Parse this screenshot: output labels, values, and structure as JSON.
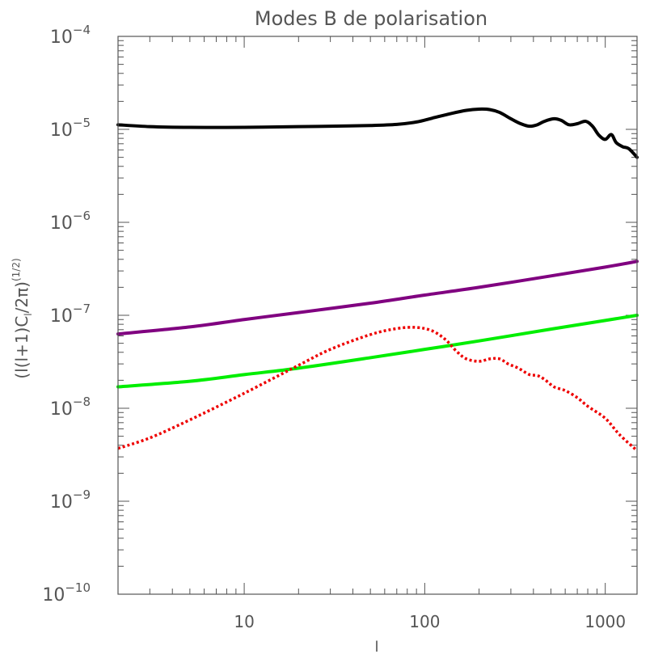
{
  "chart_data": {
    "type": "line",
    "title": "Modes B de polarisation",
    "xlabel": "l",
    "ylabel_base": "(l(l+1)C",
    "ylabel_sub": "l",
    "ylabel_tail": "/2π)",
    "ylabel_sup": "(1/2)",
    "x_scale": "log",
    "y_scale": "log",
    "xlim": [
      2,
      1500
    ],
    "ylim": [
      1e-10,
      0.0001
    ],
    "x_tick_labels": [
      "10",
      "100",
      "1000"
    ],
    "x_tick_values": [
      10,
      100,
      1000
    ],
    "y_tick_bases": [
      "10",
      "10",
      "10",
      "10",
      "10",
      "10",
      "10"
    ],
    "y_tick_exponents": [
      "−10",
      "−9",
      "−8",
      "−7",
      "−6",
      "−5",
      "−4"
    ],
    "y_tick_values": [
      1e-10,
      1e-09,
      1e-08,
      1e-07,
      1e-06,
      1e-05,
      0.0001
    ],
    "grid": false,
    "series": [
      {
        "color": "#000000",
        "style": "solid",
        "x": [
          2,
          3,
          5,
          10,
          20,
          30,
          50,
          70,
          90,
          110,
          140,
          170,
          200,
          230,
          260,
          300,
          340,
          380,
          420,
          460,
          520,
          570,
          630,
          700,
          780,
          850,
          920,
          1000,
          1080,
          1150,
          1250,
          1350,
          1500
        ],
        "y": [
          1.12e-05,
          1.07e-05,
          1.05e-05,
          1.05e-05,
          1.07e-05,
          1.08e-05,
          1.1e-05,
          1.13e-05,
          1.2e-05,
          1.32e-05,
          1.48e-05,
          1.6e-05,
          1.65e-05,
          1.63e-05,
          1.52e-05,
          1.3e-05,
          1.15e-05,
          1.08e-05,
          1.12e-05,
          1.22e-05,
          1.3e-05,
          1.25e-05,
          1.12e-05,
          1.15e-05,
          1.22e-05,
          1.08e-05,
          8.7e-06,
          7.8e-06,
          8.8e-06,
          7.2e-06,
          6.5e-06,
          6.2e-06,
          5e-06
        ]
      },
      {
        "color": "#800080",
        "style": "solid",
        "x": [
          2,
          5,
          10,
          20,
          50,
          100,
          200,
          500,
          1000,
          1500
        ],
        "y": [
          6.3e-08,
          7.5e-08,
          9e-08,
          1.07e-07,
          1.35e-07,
          1.65e-07,
          2e-07,
          2.65e-07,
          3.3e-07,
          3.8e-07
        ]
      },
      {
        "color": "#00ee00",
        "style": "solid",
        "x": [
          2,
          5,
          10,
          20,
          50,
          100,
          200,
          500,
          1000,
          1500
        ],
        "y": [
          1.7e-08,
          1.95e-08,
          2.3e-08,
          2.7e-08,
          3.5e-08,
          4.3e-08,
          5.3e-08,
          7.1e-08,
          8.8e-08,
          1e-07
        ]
      },
      {
        "color": "#ee0000",
        "style": "dotted",
        "x": [
          2,
          3,
          5,
          10,
          20,
          30,
          50,
          70,
          90,
          110,
          130,
          150,
          170,
          200,
          230,
          260,
          290,
          330,
          380,
          420,
          460,
          520,
          600,
          700,
          800,
          1000,
          1200,
          1500
        ],
        "y": [
          3.7e-09,
          4.8e-09,
          7.5e-09,
          1.45e-08,
          2.9e-08,
          4.3e-08,
          6.2e-08,
          7.2e-08,
          7.4e-08,
          6.8e-08,
          5.5e-08,
          4.1e-08,
          3.4e-08,
          3.2e-08,
          3.4e-08,
          3.4e-08,
          3e-08,
          2.7e-08,
          2.3e-08,
          2.25e-08,
          2.05e-08,
          1.7e-08,
          1.55e-08,
          1.3e-08,
          1.05e-08,
          7.8e-09,
          5.2e-09,
          3.5e-09
        ]
      }
    ]
  }
}
